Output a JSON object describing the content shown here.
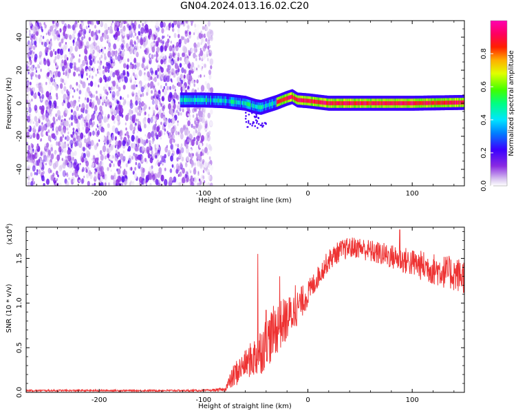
{
  "title": "GN04.2024.013.16.02.C20",
  "colorbar": {
    "label": "Normalized spectral amplitude",
    "ticks": [
      "0.0",
      "0.2",
      "0.4",
      "0.6",
      "0.8"
    ],
    "tick_values": [
      0.0,
      0.2,
      0.4,
      0.6,
      0.8
    ]
  },
  "chart_data": [
    {
      "type": "heatmap",
      "xlabel": "Height of straight line (km)",
      "ylabel": "Frequency (Hz)",
      "xlim": [
        -270,
        150
      ],
      "ylim": [
        -50,
        50
      ],
      "x_ticks": [
        -200,
        -100,
        0,
        100
      ],
      "x_tick_labels": [
        "-200",
        "-100",
        "0",
        "100"
      ],
      "y_ticks": [
        -40,
        -20,
        0,
        20,
        40
      ],
      "y_tick_labels": [
        "-40",
        "-20",
        "0",
        "20",
        "40"
      ],
      "color_range": [
        0,
        1
      ],
      "colormap": "rainbow (purple-blue-cyan-green-yellow-red-magenta)",
      "description_regions": [
        {
          "x": [
            -270,
            -95
          ],
          "freq": [
            -50,
            50
          ],
          "amplitude": [
            0.0,
            0.15
          ],
          "note": "broadband noise"
        },
        {
          "x": [
            -120,
            -30
          ],
          "freq": [
            -3,
            3
          ],
          "amplitude": [
            0.2,
            0.6
          ]
        },
        {
          "x": [
            -30,
            150
          ],
          "freq": [
            -1,
            1
          ],
          "amplitude": [
            0.8,
            1.0
          ]
        }
      ],
      "ridge_frequency": {
        "x": [
          -120,
          -100,
          -80,
          -60,
          -50,
          -45,
          -40,
          -30,
          -20,
          -15,
          -10,
          0,
          20,
          50,
          100,
          150
        ],
        "freq": [
          2,
          2,
          1.5,
          0,
          -2,
          -2.5,
          -1.5,
          0.5,
          3,
          4,
          2,
          1.5,
          0,
          0,
          0,
          0.5
        ]
      }
    },
    {
      "type": "line",
      "xlabel": "Height of straight line (km)",
      "ylabel": "SNR (10 * v/v)",
      "scale_label": "(x10^4)",
      "scale_base": "(x10",
      "scale_exp": "4",
      "scale_close": ")",
      "xlim": [
        -270,
        150
      ],
      "ylim": [
        0,
        1.85
      ],
      "x_ticks": [
        -200,
        -100,
        0,
        100
      ],
      "x_tick_labels": [
        "-200",
        "-100",
        "0",
        "100"
      ],
      "y_ticks": [
        0.0,
        0.5,
        1.0,
        1.5
      ],
      "y_tick_labels": [
        "0.0",
        "0.5",
        "1.0",
        "1.5"
      ],
      "series": [
        {
          "color": "#ee3333",
          "envelope_x": [
            -270,
            -150,
            -100,
            -80,
            -70,
            -60,
            -50,
            -40,
            -30,
            -20,
            -10,
            0,
            10,
            20,
            30,
            40,
            50,
            60,
            80,
            100,
            120,
            150
          ],
          "envelope_y": [
            0.02,
            0.02,
            0.02,
            0.03,
            0.2,
            0.32,
            0.4,
            0.55,
            0.72,
            0.82,
            0.95,
            1.1,
            1.3,
            1.48,
            1.58,
            1.62,
            1.62,
            1.58,
            1.52,
            1.45,
            1.38,
            1.3
          ],
          "noise_amplitude": [
            0.01,
            0.01,
            0.01,
            0.02,
            0.15,
            0.15,
            0.25,
            0.3,
            0.3,
            0.25,
            0.2,
            0.15,
            0.12,
            0.12,
            0.12,
            0.12,
            0.12,
            0.13,
            0.14,
            0.16,
            0.18,
            0.2
          ],
          "spikes": [
            {
              "x": -48,
              "y": 1.55
            },
            {
              "x": -40,
              "y": 0.92
            },
            {
              "x": -27,
              "y": 1.3
            },
            {
              "x": -12,
              "y": 1.2
            },
            {
              "x": 88,
              "y": 1.82
            }
          ]
        }
      ]
    }
  ]
}
